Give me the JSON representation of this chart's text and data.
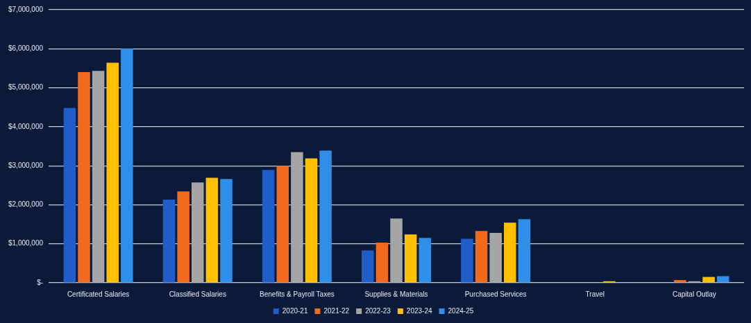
{
  "chart_data": {
    "type": "bar",
    "categories": [
      "Certificated Salaries",
      "Classified Salaries",
      "Benefits & Payroll Taxes",
      "Supplies & Materials",
      "Purchased Services",
      "Travel",
      "Capital Outlay"
    ],
    "series": [
      {
        "name": "2020-21",
        "color": "#1f5ec9",
        "values": [
          4480000,
          2130000,
          2890000,
          830000,
          1130000,
          null,
          0
        ]
      },
      {
        "name": "2021-22",
        "color": "#f26b1d",
        "values": [
          5400000,
          2340000,
          3000000,
          1030000,
          1330000,
          null,
          70000
        ]
      },
      {
        "name": "2022-23",
        "color": "#a5a5a5",
        "values": [
          5430000,
          2570000,
          3350000,
          1650000,
          1280000,
          null,
          40000
        ]
      },
      {
        "name": "2023-24",
        "color": "#ffc000",
        "values": [
          5640000,
          2690000,
          3190000,
          1240000,
          1540000,
          40000,
          150000
        ]
      },
      {
        "name": "2024-25",
        "color": "#2e8ee8",
        "values": [
          6000000,
          2660000,
          3390000,
          1150000,
          1630000,
          null,
          170000
        ]
      }
    ],
    "ylim": [
      0,
      7000000
    ],
    "yticks": [
      {
        "value": 0,
        "label": "$-"
      },
      {
        "value": 1000000,
        "label": "$1,000,000"
      },
      {
        "value": 2000000,
        "label": "$2,000,000"
      },
      {
        "value": 3000000,
        "label": "$3,000,000"
      },
      {
        "value": 4000000,
        "label": "$4,000,000"
      },
      {
        "value": 5000000,
        "label": "$5,000,000"
      },
      {
        "value": 6000000,
        "label": "$6,000,000"
      },
      {
        "value": 7000000,
        "label": "$7,000,000"
      }
    ],
    "grid": "y",
    "legend": "bottom"
  }
}
